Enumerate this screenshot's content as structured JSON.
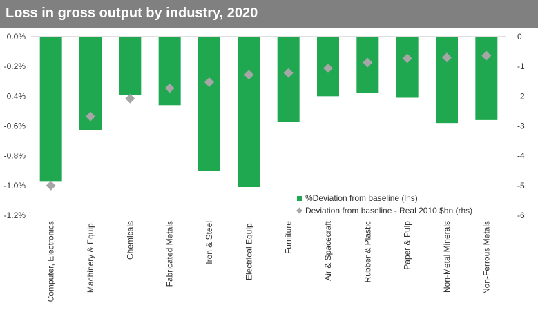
{
  "chart_data": {
    "type": "bar",
    "title": "Loss in gross output by industry, 2020",
    "categories": [
      "Computer, Electronics",
      "Machinery & Equip.",
      "Chemicals",
      "Fabricated Metals",
      "Iron & Steel",
      "Electrical Equip.",
      "Furniture",
      "Air & Spacecraft",
      "Rubber & Plastic",
      "Paper & Pulp",
      "Non-Metal Minerals",
      "Non-Ferrous Metals"
    ],
    "series": [
      {
        "name": "%Deviation from baseline (lhs)",
        "type": "bar",
        "axis": "left",
        "color": "#1fa84f",
        "values": [
          -0.97,
          -0.63,
          -0.39,
          -0.46,
          -0.9,
          -1.01,
          -0.57,
          -0.4,
          -0.38,
          -0.41,
          -0.58,
          -0.56
        ]
      },
      {
        "name": "Deviation from baseline - Real 2010 $bn (rhs)",
        "type": "scatter",
        "axis": "right",
        "color": "#a6a6a6",
        "values": [
          -5.0,
          -2.68,
          -2.08,
          -1.73,
          -1.53,
          -1.28,
          -1.22,
          -1.06,
          -0.87,
          -0.73,
          -0.7,
          -0.64
        ]
      }
    ],
    "left_axis": {
      "ylim": [
        -1.2,
        0
      ],
      "ticks": [
        "0.0%",
        "-0.2%",
        "-0.4%",
        "-0.6%",
        "-0.8%",
        "-1.0%",
        "-1.2%"
      ]
    },
    "right_axis": {
      "ylim": [
        -6,
        0
      ],
      "ticks": [
        "0",
        "-1",
        "-2",
        "-3",
        "-4",
        "-5",
        "-6"
      ]
    },
    "grid": false,
    "legend_position": "bottom-right"
  }
}
